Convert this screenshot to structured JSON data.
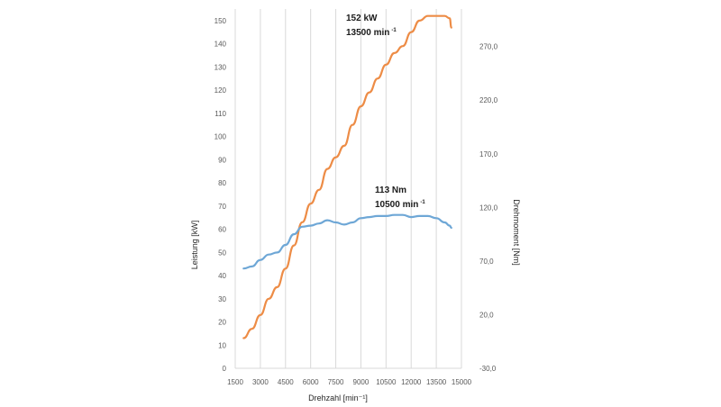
{
  "chart_data": {
    "type": "line",
    "title": "",
    "xlabel": "Drehzahl [min⁻¹]",
    "ylabel": "Leistung [kW]",
    "y2label": "Drehmoment [Nm]",
    "xlim": [
      1500,
      15000
    ],
    "ylim": [
      0,
      155
    ],
    "y2lim": [
      -30,
      305
    ],
    "x_ticks": [
      "1500",
      "3000",
      "4500",
      "6000",
      "7500",
      "9000",
      "10500",
      "12000",
      "13500",
      "15000"
    ],
    "y_ticks": [
      "0",
      "10",
      "20",
      "30",
      "40",
      "50",
      "60",
      "70",
      "80",
      "90",
      "100",
      "110",
      "120",
      "130",
      "140",
      "150"
    ],
    "y2_ticks": [
      "-30,0",
      "20,0",
      "70,0",
      "120,0",
      "170,0",
      "220,0",
      "270,0"
    ],
    "grid": "vertical",
    "series": [
      {
        "axis": "left",
        "color": "#ED8C46",
        "x": [
          2000,
          2500,
          3000,
          3500,
          4000,
          4500,
          5000,
          5500,
          6000,
          6500,
          7000,
          7500,
          8000,
          8500,
          9000,
          9500,
          10000,
          10500,
          11000,
          11500,
          12000,
          12500,
          13000,
          13500,
          14000,
          14300,
          14400
        ],
        "values": [
          13,
          17,
          23,
          30,
          35,
          43,
          53,
          63,
          71,
          77,
          86,
          91,
          96,
          105,
          113,
          119,
          125,
          131,
          136,
          139,
          145,
          150,
          152,
          152,
          152,
          151,
          147
        ]
      },
      {
        "axis": "right",
        "color": "#6EA7D6",
        "x": [
          2000,
          2500,
          3000,
          3500,
          4000,
          4500,
          5000,
          5500,
          6000,
          6500,
          7000,
          7500,
          8000,
          8500,
          9000,
          9500,
          10000,
          10500,
          11000,
          11500,
          12000,
          12500,
          13000,
          13500,
          14000,
          14300,
          14400
        ],
        "values": [
          63,
          65,
          71,
          76,
          78,
          85,
          95,
          102,
          103,
          105,
          108,
          106,
          104,
          106,
          110,
          111,
          112,
          112,
          113,
          113,
          111,
          112,
          112,
          110,
          106,
          103,
          101
        ]
      }
    ],
    "annotations": [
      {
        "line1": "152 kW",
        "line2": "13500 min",
        "sup": "-1"
      },
      {
        "line1": "113 Nm",
        "line2": "10500 min",
        "sup": "-1"
      }
    ]
  }
}
